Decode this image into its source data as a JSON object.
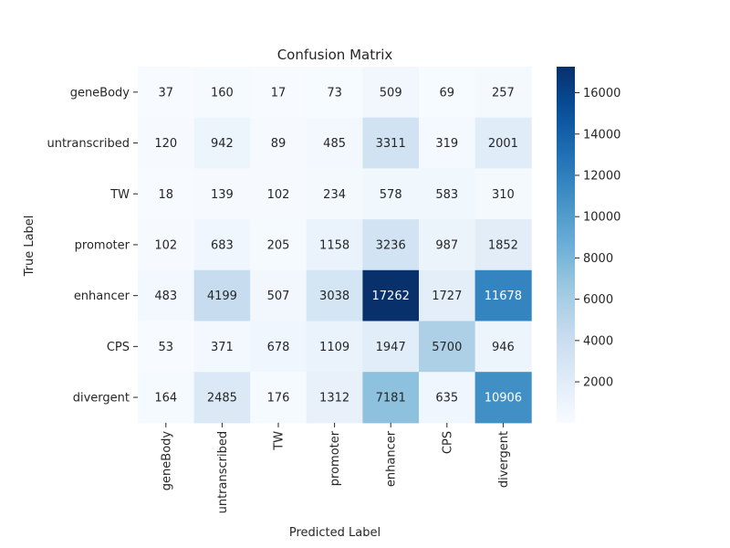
{
  "chart_data": {
    "type": "heatmap",
    "title": "Confusion Matrix",
    "xlabel": "Predicted Label",
    "ylabel": "True Label",
    "x_categories": [
      "geneBody",
      "untranscribed",
      "TW",
      "promoter",
      "enhancer",
      "CPS",
      "divergent"
    ],
    "y_categories": [
      "geneBody",
      "untranscribed",
      "TW",
      "promoter",
      "enhancer",
      "CPS",
      "divergent"
    ],
    "values": [
      [
        37,
        160,
        17,
        73,
        509,
        69,
        257
      ],
      [
        120,
        942,
        89,
        485,
        3311,
        319,
        2001
      ],
      [
        18,
        139,
        102,
        234,
        578,
        583,
        310
      ],
      [
        102,
        683,
        205,
        1158,
        3236,
        987,
        1852
      ],
      [
        483,
        4199,
        507,
        3038,
        17262,
        1727,
        11678
      ],
      [
        53,
        371,
        678,
        1109,
        1947,
        5700,
        946
      ],
      [
        164,
        2485,
        176,
        1312,
        7181,
        635,
        10906
      ]
    ],
    "colormap": "Blues",
    "colorbar": {
      "min": 17,
      "max": 17262,
      "ticks": [
        2000,
        4000,
        6000,
        8000,
        10000,
        12000,
        14000,
        16000
      ]
    }
  }
}
